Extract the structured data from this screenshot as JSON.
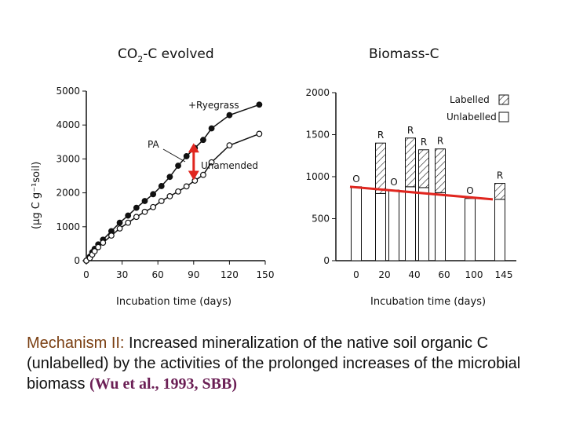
{
  "chart_data": [
    {
      "type": "line",
      "title": "CO2-C evolved",
      "xlabel": "Incubation time (days)",
      "ylabel": "(μg C g⁻¹soil)",
      "xlim": [
        0,
        150
      ],
      "ylim": [
        0,
        5000
      ],
      "xticks": [
        "0",
        "30",
        "60",
        "90",
        "120",
        "150"
      ],
      "yticks": [
        "0",
        "1000",
        "2000",
        "3000",
        "4000",
        "5000"
      ],
      "grid": false,
      "series": [
        {
          "name": "+Ryegrass",
          "marker": "filled-circle",
          "x": [
            0,
            3,
            5,
            7,
            10,
            14,
            21,
            28,
            35,
            42,
            49,
            56,
            63,
            70,
            77,
            84,
            91,
            98,
            105,
            120,
            145
          ],
          "y": [
            0,
            120,
            250,
            350,
            480,
            620,
            870,
            1120,
            1330,
            1560,
            1760,
            1960,
            2200,
            2470,
            2800,
            3080,
            3320,
            3560,
            3900,
            4290,
            4600
          ]
        },
        {
          "name": "Unamended",
          "marker": "open-circle",
          "x": [
            0,
            3,
            5,
            7,
            10,
            14,
            21,
            28,
            35,
            42,
            49,
            56,
            63,
            70,
            77,
            84,
            91,
            98,
            105,
            120,
            145
          ],
          "y": [
            0,
            80,
            180,
            280,
            400,
            530,
            740,
            950,
            1120,
            1290,
            1440,
            1580,
            1760,
            1900,
            2040,
            2190,
            2360,
            2530,
            2900,
            3400,
            3740
          ]
        }
      ],
      "annotations": [
        {
          "text": "PA",
          "note": "arrow from PA label to gap between curves near day 90; red double-headed arrow spans the gap"
        }
      ],
      "highlight_color": "#e0261f"
    },
    {
      "type": "bar",
      "title": "Biomass-C",
      "xlabel": "Incubation time (days)",
      "ylim": [
        0,
        2000
      ],
      "yticks": [
        "0",
        "500",
        "1000",
        "1500",
        "2000"
      ],
      "categories": [
        "0",
        "20",
        "40",
        "60",
        "100",
        "145"
      ],
      "grid": false,
      "legend": {
        "position": "top-right",
        "entries": [
          "Labelled",
          "Unlabelled"
        ]
      },
      "series": [
        {
          "name": "Unlabelled",
          "fill": "open",
          "values": [
            880,
            800,
            880,
            810,
            740,
            730
          ]
        },
        {
          "name": "Labelled",
          "fill": "hatched",
          "values": [
            0,
            600,
            580,
            520,
            0,
            190
          ]
        }
      ],
      "bar_labels": [
        "O",
        "R",
        "R",
        "R",
        "O",
        "R"
      ],
      "extra_bars": [
        {
          "after_category": "20",
          "label": "O",
          "unlabelled": 840
        },
        {
          "after_category": "40",
          "label": "R",
          "unlabelled": 870,
          "labelled": 450
        }
      ],
      "trend_line": {
        "from": [
          0,
          880
        ],
        "to": [
          145,
          730
        ],
        "color": "#e0261f"
      }
    }
  ],
  "caption": {
    "lead": "Mechanism II:",
    "body": " Increased mineralization of the native soil organic C (unlabelled) by the activities of the prolonged increases of the microbial biomass ",
    "citation": "(Wu et al., 1993, SBB)"
  }
}
